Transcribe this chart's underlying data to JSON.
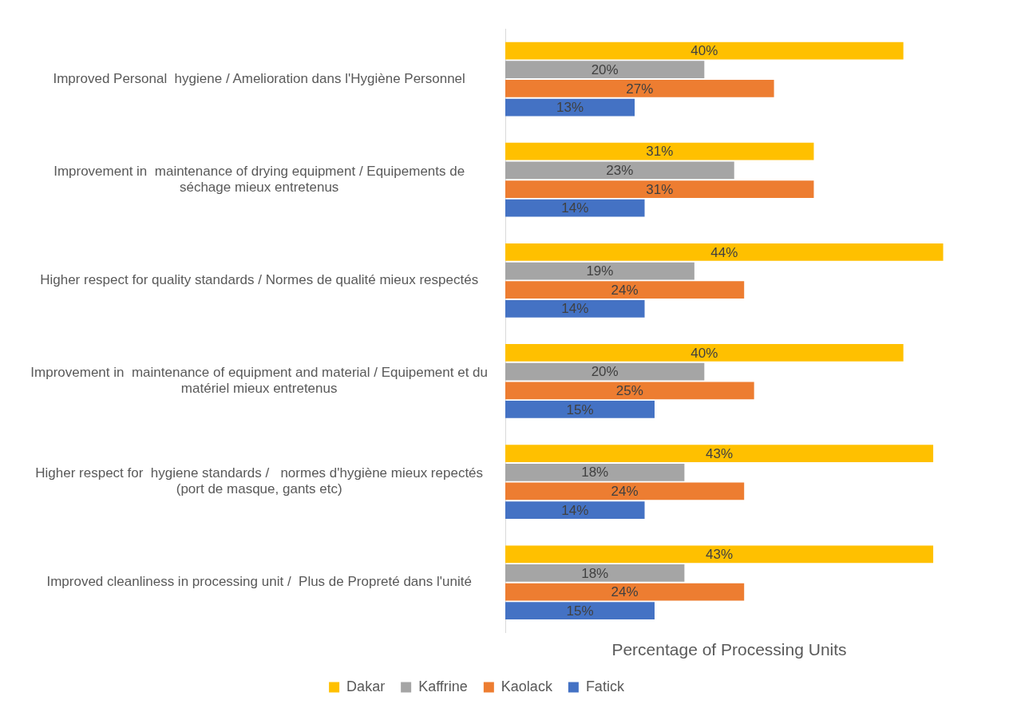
{
  "chart_data": {
    "type": "bar",
    "orientation": "horizontal",
    "xlabel": "Percentage of Processing Units",
    "categories": [
      "Improved Personal  hygiene / Amelioration dans l'Hygiène Personnel",
      "Improvement in  maintenance of drying equipment / Equipements de séchage mieux entretenus",
      "Higher respect for quality standards / Normes de qualité mieux respectés",
      "Improvement in  maintenance of equipment and material / Equipement et du matériel mieux entretenus",
      "Higher respect for  hygiene standards /   normes d'hygiène mieux repectés (port de masque, gants etc)",
      "Improved cleanliness in processing unit /  Plus de Propreté dans l'unité"
    ],
    "series": [
      {
        "name": "Dakar",
        "color": "#ffc000",
        "values": [
          40,
          31,
          44,
          40,
          43,
          43
        ],
        "value_labels": [
          "40%",
          "31%",
          "44%",
          "40%",
          "43%",
          "43%"
        ]
      },
      {
        "name": "Kaffrine",
        "color": "#a5a5a5",
        "values": [
          20,
          23,
          19,
          20,
          18,
          18
        ],
        "value_labels": [
          "20%",
          "23%",
          "19%",
          "20%",
          "18%",
          "18%"
        ]
      },
      {
        "name": "Kaolack",
        "color": "#ed7d31",
        "values": [
          27,
          31,
          24,
          25,
          24,
          24
        ],
        "value_labels": [
          "27%",
          "31%",
          "24%",
          "25%",
          "24%",
          "24%"
        ]
      },
      {
        "name": "Fatick",
        "color": "#4472c4",
        "values": [
          13,
          14,
          14,
          15,
          14,
          15
        ],
        "value_labels": [
          "13%",
          "14%",
          "14%",
          "15%",
          "14%",
          "15%"
        ]
      }
    ],
    "legend": "bottom",
    "grid": false
  }
}
